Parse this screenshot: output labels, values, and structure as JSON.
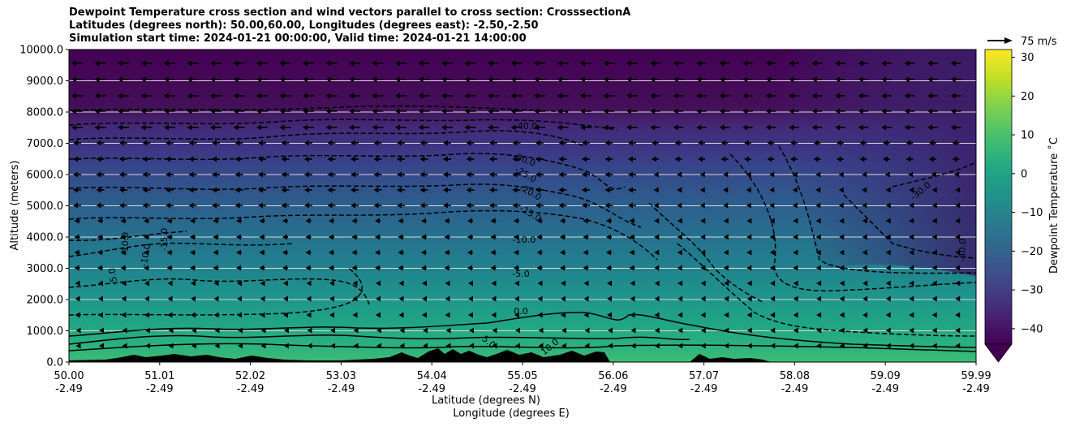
{
  "title_lines": [
    "Dewpoint Temperature cross section and wind vectors parallel to cross section: CrosssectionA",
    "Latitudes (degrees north): 50.00,60.00, Longitudes (degrees east): -2.50,-2.50",
    "Simulation start time: 2024-01-21 00:00:00, Valid time: 2024-01-21 14:00:00"
  ],
  "chart_data": {
    "type": "contourf",
    "ylabel": "Altitude (meters)",
    "xlabel_lines": [
      "Latitude (degrees N)",
      "Longitude (degrees E)"
    ],
    "ylim": [
      0,
      10000
    ],
    "y_ticks": [
      "0.0",
      "1000.0",
      "2000.0",
      "3000.0",
      "4000.0",
      "5000.0",
      "6000.0",
      "7000.0",
      "8000.0",
      "9000.0",
      "10000.0"
    ],
    "y_tick_values": [
      0,
      1000,
      2000,
      3000,
      4000,
      5000,
      6000,
      7000,
      8000,
      9000,
      10000
    ],
    "x_ticks": [
      {
        "lat": "50.00",
        "lon": "-2.49"
      },
      {
        "lat": "51.01",
        "lon": "-2.49"
      },
      {
        "lat": "52.02",
        "lon": "-2.49"
      },
      {
        "lat": "53.03",
        "lon": "-2.49"
      },
      {
        "lat": "54.04",
        "lon": "-2.49"
      },
      {
        "lat": "55.05",
        "lon": "-2.49"
      },
      {
        "lat": "56.06",
        "lon": "-2.49"
      },
      {
        "lat": "57.07",
        "lon": "-2.49"
      },
      {
        "lat": "58.08",
        "lon": "-2.49"
      },
      {
        "lat": "59.09",
        "lon": "-2.49"
      },
      {
        "lat": "59.99",
        "lon": "-2.49"
      }
    ],
    "xlim": [
      50.0,
      59.99
    ],
    "grid": "horizontal",
    "colorbar": {
      "label": "Dewpoint Temperature $^\\circ$C",
      "label_display": "Dewpoint Temperature ˚C",
      "range": [
        -44,
        32
      ],
      "ticks": [
        "30",
        "20",
        "10",
        "0",
        "−10",
        "−20",
        "−30",
        "−40"
      ],
      "tick_values": [
        30,
        20,
        10,
        0,
        -10,
        -20,
        -30,
        -40
      ],
      "extend": "min",
      "colormap": "viridis"
    },
    "contour_labels": [
      "-40.0",
      "-30.0",
      "-25.0",
      "-20.0",
      "-15.0",
      "-10.0",
      "-5.0",
      "0.0",
      "5.0",
      "10.0",
      "-10.0",
      "-10.0",
      "-15.0",
      "-5.0",
      "-30.0",
      "-40.0"
    ],
    "wind_vectors": {
      "direction": "toward lower latitude (left)",
      "reference_label": "75 m/s"
    }
  }
}
